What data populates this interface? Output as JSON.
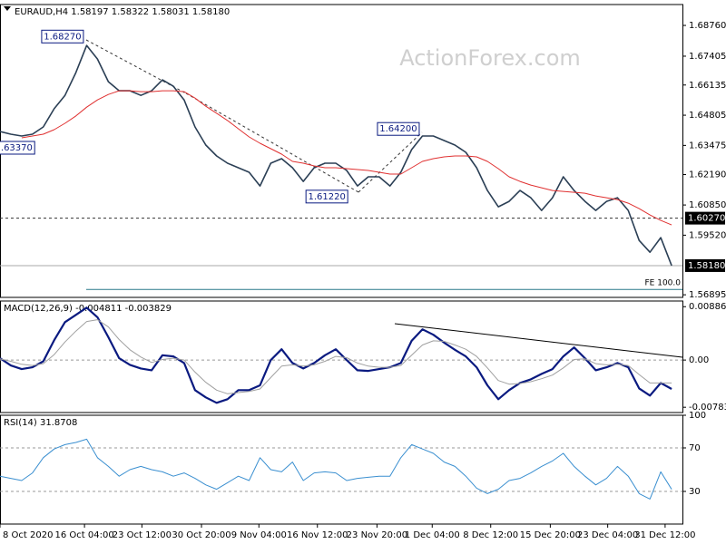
{
  "chart_data": [
    {
      "type": "line",
      "title": "EURAUD,H4  1.58197 1.58322 1.58031 1.58180",
      "watermark": "ActionForex.com",
      "xlim": [
        0,
        63
      ],
      "ylim": [
        1.5678,
        1.6968
      ],
      "yticks": [
        {
          "value": 1.6876,
          "label": "1.68760"
        },
        {
          "value": 1.67405,
          "label": "1.67405"
        },
        {
          "value": 1.66135,
          "label": "1.66135"
        },
        {
          "value": 1.64805,
          "label": "1.64805"
        },
        {
          "value": 1.63475,
          "label": "1.63475"
        },
        {
          "value": 1.6219,
          "label": "1.62190"
        },
        {
          "value": 1.6085,
          "label": "1.60850"
        },
        {
          "value": 1.5952,
          "label": "1.59520"
        },
        {
          "value": 1.56895,
          "label": "1.56895"
        }
      ],
      "series": [
        {
          "color": "#2b3f55",
          "values": [
            1.6409,
            1.6397,
            1.6389,
            1.6397,
            1.6429,
            1.6509,
            1.6568,
            1.6668,
            1.6788,
            1.6728,
            1.6628,
            1.6588,
            1.6588,
            1.6568,
            1.6588,
            1.6636,
            1.6608,
            1.6548,
            1.6429,
            1.6349,
            1.6301,
            1.6269,
            1.6249,
            1.6229,
            1.6169,
            1.6269,
            1.6289,
            1.6249,
            1.6189,
            1.6249,
            1.6269,
            1.6269,
            1.6237,
            1.6169,
            1.6209,
            1.6209,
            1.6169,
            1.6229,
            1.6329,
            1.6389,
            1.6389,
            1.6369,
            1.6349,
            1.6317,
            1.6249,
            1.6149,
            1.6077,
            1.6101,
            1.6149,
            1.6117,
            1.6061,
            1.6117,
            1.6209,
            1.6149,
            1.6101,
            1.6061,
            1.6101,
            1.6117,
            1.6061,
            1.5929,
            1.5877,
            1.5941,
            1.5818
          ]
        },
        {
          "color": "#e03030",
          "values": [
            null,
            null,
            1.6381,
            1.6389,
            1.6397,
            1.6417,
            1.6445,
            1.6477,
            1.6516,
            1.6548,
            1.6572,
            1.6588,
            1.6588,
            1.6584,
            1.6584,
            1.6588,
            1.6588,
            1.6584,
            1.6556,
            1.652,
            1.6489,
            1.6457,
            1.6421,
            1.6385,
            1.6357,
            1.6333,
            1.6309,
            1.6277,
            1.6269,
            1.6257,
            1.6249,
            1.6249,
            1.6245,
            1.6241,
            1.6237,
            1.6229,
            1.6221,
            1.6221,
            1.6249,
            1.6277,
            1.6289,
            1.6297,
            1.6301,
            1.6301,
            1.6297,
            1.6277,
            1.6245,
            1.6209,
            1.6189,
            1.6173,
            1.6161,
            1.6149,
            1.6145,
            1.6141,
            1.6137,
            1.6125,
            1.6117,
            1.6109,
            1.6093,
            1.6069,
            1.6041,
            1.6017,
            1.5997
          ]
        }
      ],
      "levels": [
        {
          "value": 1.6027,
          "label": "1.60270",
          "style": "dashed"
        },
        {
          "value": 1.5818,
          "label": "1.58180",
          "style": "solid"
        }
      ],
      "fib": {
        "value": 1.5713,
        "label": "FE 100.0",
        "color": "#2a7a8a"
      },
      "annotations": [
        {
          "x": 7.7,
          "value": 1.6827,
          "label": "1.68270"
        },
        {
          "x": 3.2,
          "value": 1.6337,
          "label": "1.63370"
        },
        {
          "x": 32.1,
          "value": 1.6122,
          "label": "1.61220"
        },
        {
          "x": 38.7,
          "value": 1.642,
          "label": "1.64200"
        }
      ]
    },
    {
      "type": "line",
      "title": "MACD(12,26,9) -0.004811 -0.003829",
      "xlim": [
        0,
        63
      ],
      "ylim": [
        -0.00871,
        0.0098
      ],
      "yticks": [
        {
          "value": 0.00886,
          "label": "0.00886"
        },
        {
          "value": 0,
          "label": "0.00"
        },
        {
          "value": -0.007834,
          "label": "-0.007834"
        }
      ],
      "series": [
        {
          "color": "#0a1a80",
          "values": [
            0.0003,
            -0.0009,
            -0.0015,
            -0.0012,
            -0.0002,
            0.0033,
            0.0063,
            0.0075,
            0.0087,
            0.0071,
            0.0038,
            0.0003,
            -0.0008,
            -0.0014,
            -0.0017,
            0.0008,
            0.0006,
            -0.0005,
            -0.005,
            -0.0062,
            -0.0071,
            -0.0065,
            -0.005,
            -0.005,
            -0.0042,
            0,
            0.0018,
            -0.0005,
            -0.0014,
            -0.0005,
            0.0008,
            0.0018,
            0,
            -0.0017,
            -0.0018,
            -0.0015,
            -0.0012,
            -0.0005,
            0.0032,
            0.0051,
            0.0042,
            0.0029,
            0.0017,
            0.0006,
            -0.0012,
            -0.0042,
            -0.0065,
            -0.005,
            -0.0038,
            -0.0032,
            -0.0023,
            -0.0015,
            0.0006,
            0.0021,
            0.0003,
            -0.0017,
            -0.0012,
            -0.0005,
            -0.0012,
            -0.0047,
            -0.0059,
            -0.0038,
            -0.0048
          ]
        },
        {
          "color": "#a0a0a0",
          "values": [
            0.0002,
            -0.0002,
            -0.0007,
            -0.0009,
            -0.0006,
            0.0009,
            0.003,
            0.0048,
            0.0064,
            0.0067,
            0.0055,
            0.0034,
            0.0017,
            0.0005,
            -0.0004,
            0.0001,
            0.0003,
            0,
            -0.002,
            -0.0037,
            -0.005,
            -0.0056,
            -0.0054,
            -0.0052,
            -0.0048,
            -0.0029,
            -0.001,
            -0.0008,
            -0.001,
            -0.0008,
            -0.0002,
            0.0006,
            0.0004,
            -0.0005,
            -0.001,
            -0.0012,
            -0.0012,
            -0.0009,
            0.0008,
            0.0025,
            0.0032,
            0.0031,
            0.0025,
            0.0018,
            0.0006,
            -0.0013,
            -0.0034,
            -0.004,
            -0.0039,
            -0.0036,
            -0.0031,
            -0.0025,
            -0.0013,
            0.0001,
            0.0002,
            -0.0006,
            -0.0008,
            -0.0007,
            -0.0009,
            -0.0024,
            -0.0038,
            -0.0038,
            -0.0038
          ]
        }
      ]
    },
    {
      "type": "line",
      "title": "RSI(14) 31.8708",
      "xlim": [
        0,
        63
      ],
      "ylim": [
        0,
        100
      ],
      "yticks": [
        100,
        70,
        30
      ],
      "series": [
        {
          "color": "#3a8fd0",
          "values": [
            44,
            42,
            40,
            47,
            61,
            69,
            73,
            75,
            78,
            61,
            53,
            44,
            50,
            53,
            50,
            48,
            44,
            47,
            42,
            36,
            32,
            38,
            44,
            40,
            61,
            50,
            48,
            57,
            40,
            47,
            48,
            47,
            40,
            42,
            43,
            44,
            44,
            61,
            73,
            69,
            65,
            57,
            53,
            44,
            33,
            28,
            32,
            40,
            42,
            47,
            53,
            58,
            65,
            53,
            44,
            36,
            42,
            53,
            44,
            28,
            23,
            48,
            31.9
          ]
        }
      ],
      "xticks": [
        {
          "value": 0,
          "label": "8 Oct 2020"
        },
        {
          "value": 7.8,
          "label": "16 Oct 04:00"
        },
        {
          "value": 13.1,
          "label": "23 Oct 12:00"
        },
        {
          "value": 18.6,
          "label": "30 Oct 20:00"
        },
        {
          "value": 23.9,
          "label": "9 Nov 04:00"
        },
        {
          "value": 29.3,
          "label": "16 Nov 12:00"
        },
        {
          "value": 34.8,
          "label": "23 Nov 20:00"
        },
        {
          "value": 39.9,
          "label": "1 Dec 04:00"
        },
        {
          "value": 45.3,
          "label": "8 Dec 12:00"
        },
        {
          "value": 50.8,
          "label": "15 Dec 20:00"
        },
        {
          "value": 56.1,
          "label": "23 Dec 04:00"
        },
        {
          "value": 61.4,
          "label": "31 Dec 12:00"
        }
      ]
    }
  ]
}
